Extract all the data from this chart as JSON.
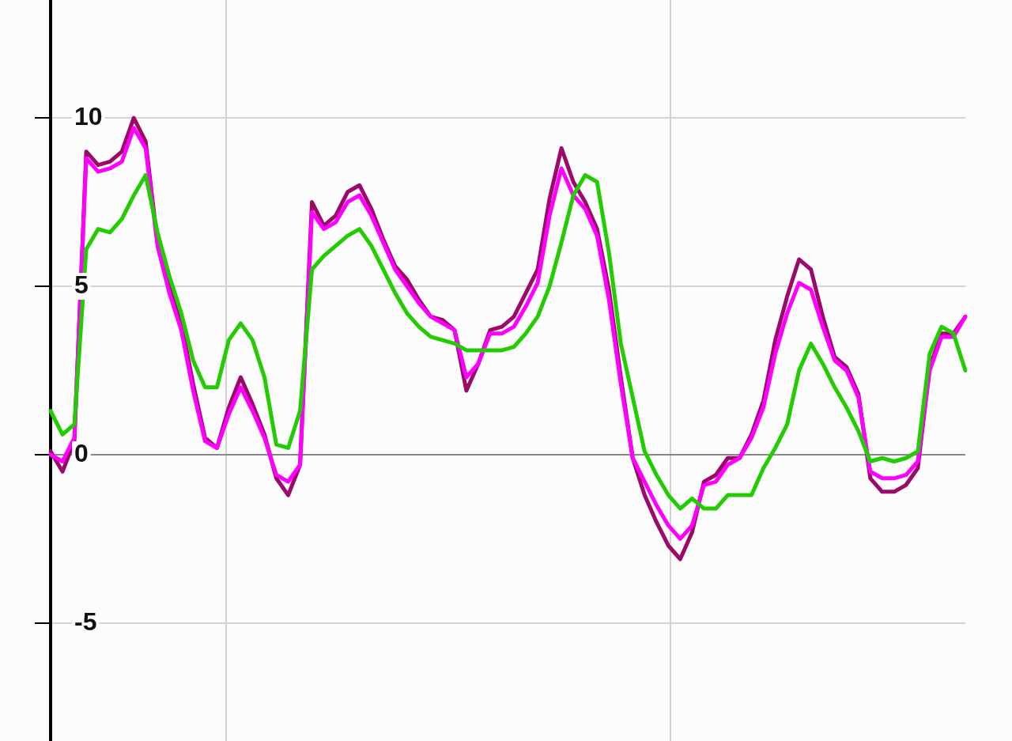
{
  "chart_data": {
    "type": "line",
    "categories": [
      null,
      null,
      null,
      null,
      null,
      null,
      null,
      null,
      null,
      null,
      null,
      null,
      null,
      null,
      null,
      null,
      null,
      null,
      null,
      null,
      null,
      null,
      null,
      null,
      null,
      null,
      null,
      null,
      null,
      null,
      null,
      null,
      null,
      null,
      null,
      null,
      null,
      null,
      null,
      null,
      null,
      null,
      null,
      null,
      null,
      null,
      null,
      null,
      null,
      null,
      null,
      null,
      null,
      null,
      null,
      null,
      null,
      null,
      null,
      null,
      null,
      null,
      null,
      null,
      null,
      null,
      null,
      null,
      null,
      null,
      null,
      null,
      null,
      null,
      null,
      null,
      null,
      null
    ],
    "series": [
      {
        "color": "#9b0a6b",
        "values": [
          0.1,
          -0.5,
          0.4,
          9.0,
          8.6,
          8.7,
          9.0,
          10.0,
          9.3,
          6.3,
          5.0,
          3.9,
          2.1,
          0.5,
          0.2,
          1.4,
          2.3,
          1.5,
          0.6,
          -0.7,
          -1.2,
          -0.3,
          7.5,
          6.8,
          7.1,
          7.8,
          8.0,
          7.3,
          6.4,
          5.6,
          5.2,
          4.6,
          4.1,
          4.0,
          3.7,
          1.9,
          2.7,
          3.7,
          3.8,
          4.1,
          4.8,
          5.5,
          7.6,
          9.1,
          8.1,
          7.5,
          6.7,
          4.9,
          2.3,
          -0.1,
          -1.2,
          -2.0,
          -2.7,
          -3.1,
          -2.3,
          -0.8,
          -0.6,
          -0.1,
          -0.1,
          0.6,
          1.6,
          3.4,
          4.7,
          5.8,
          5.5,
          4.1,
          2.9,
          2.6,
          1.8,
          -0.7,
          -1.1,
          -1.1,
          -0.9,
          -0.4,
          2.6,
          3.6,
          3.6,
          4.1
        ]
      },
      {
        "color": "#ff00ff",
        "values": [
          0,
          -0.2,
          0.5,
          8.8,
          8.4,
          8.5,
          8.7,
          9.7,
          9.1,
          6.2,
          4.8,
          3.7,
          1.9,
          0.4,
          0.2,
          1.2,
          2.0,
          1.3,
          0.5,
          -0.6,
          -0.8,
          -0.3,
          7.2,
          6.7,
          6.9,
          7.5,
          7.7,
          7.1,
          6.3,
          5.5,
          5.0,
          4.5,
          4.1,
          3.9,
          3.7,
          2.3,
          2.7,
          3.6,
          3.6,
          3.8,
          4.4,
          5.1,
          7.1,
          8.5,
          7.7,
          7.3,
          6.5,
          4.6,
          2.1,
          -0.1,
          -0.8,
          -1.5,
          -2.1,
          -2.5,
          -2.1,
          -0.9,
          -0.8,
          -0.3,
          -0.1,
          0.5,
          1.4,
          3.0,
          4.2,
          5.1,
          4.9,
          3.8,
          2.8,
          2.5,
          1.7,
          -0.5,
          -0.7,
          -0.7,
          -0.6,
          -0.2,
          2.5,
          3.5,
          3.5,
          4.1
        ]
      },
      {
        "color": "#22cc00",
        "values": [
          1.3,
          0.6,
          0.9,
          6.1,
          6.7,
          6.6,
          7.0,
          7.7,
          8.3,
          6.6,
          5.3,
          4.2,
          2.8,
          2.0,
          2.0,
          3.4,
          3.9,
          3.4,
          2.3,
          0.3,
          0.2,
          1.3,
          5.5,
          5.9,
          6.2,
          6.5,
          6.7,
          6.2,
          5.5,
          4.8,
          4.2,
          3.8,
          3.5,
          3.4,
          3.3,
          3.1,
          3.1,
          3.1,
          3.1,
          3.2,
          3.6,
          4.1,
          5.0,
          6.3,
          7.7,
          8.3,
          8.1,
          6.0,
          3.3,
          1.7,
          0.1,
          -0.6,
          -1.2,
          -1.6,
          -1.3,
          -1.6,
          -1.6,
          -1.2,
          -1.2,
          -1.2,
          -0.4,
          0.2,
          0.9,
          2.5,
          3.3,
          2.7,
          2.0,
          1.4,
          0.7,
          -0.2,
          -0.1,
          -0.2,
          -0.1,
          0.1,
          3.0,
          3.8,
          3.6,
          2.5
        ]
      }
    ],
    "ylim": [
      -8.5,
      13.5
    ],
    "yticks": [
      -5,
      0,
      5,
      10
    ],
    "grid": "y",
    "legend": false,
    "tick_labels": "y",
    "marker": "none",
    "line_style": "solid"
  }
}
